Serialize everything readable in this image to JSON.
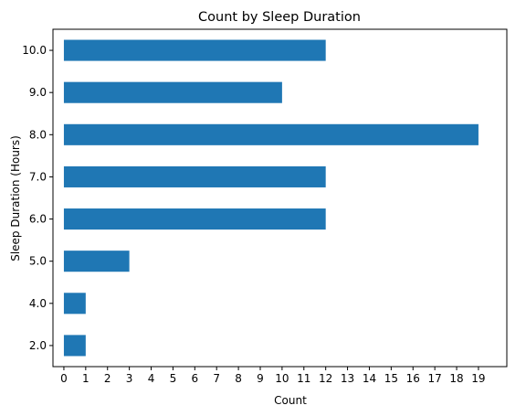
{
  "chart_data": {
    "type": "bar",
    "orientation": "horizontal",
    "title": "Count by Sleep Duration",
    "xlabel": "Count",
    "ylabel": "Sleep Duration (Hours)",
    "categories": [
      "2.0",
      "4.0",
      "5.0",
      "6.0",
      "7.0",
      "8.0",
      "9.0",
      "10.0"
    ],
    "values": [
      1,
      1,
      3,
      12,
      12,
      19,
      10,
      12
    ],
    "xlim": [
      0,
      20
    ],
    "xticks": [
      0,
      1,
      2,
      3,
      4,
      5,
      6,
      7,
      8,
      9,
      10,
      11,
      12,
      13,
      14,
      15,
      16,
      17,
      18,
      19
    ],
    "grid": false,
    "legend": "none",
    "bar_color": "#1f77b4"
  }
}
